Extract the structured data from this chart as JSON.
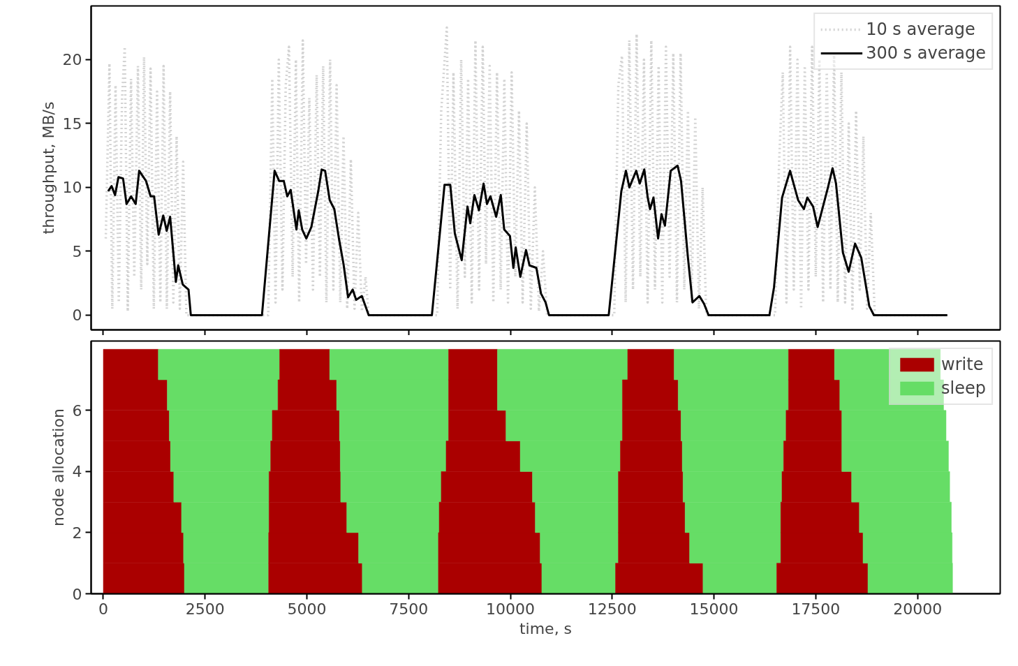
{
  "chart_data": [
    {
      "type": "line",
      "ylabel": "throughput, MB/s",
      "xlim": [
        -300,
        22030
      ],
      "ylim": [
        -1.15,
        24.2
      ],
      "xticks": [
        0,
        2500,
        5000,
        7500,
        10000,
        12500,
        15000,
        17500,
        20000
      ],
      "yticks": [
        0,
        5,
        10,
        15,
        20
      ],
      "tick_labels": "y",
      "grid": false,
      "legend": "top right",
      "series": [
        {
          "name": "10 s average",
          "color": "#d3d3d3",
          "line_style": "dotted",
          "x": [
            60,
            150,
            220,
            300,
            380,
            460,
            526,
            600,
            680,
            760,
            850,
            930,
            1000,
            1080,
            1160,
            1240,
            1320,
            1400,
            1480,
            1560,
            1640,
            1720,
            1800,
            1880,
            1960,
            2040,
            2100,
            4000,
            4050,
            4150,
            4230,
            4310,
            4400,
            4480,
            4560,
            4650,
            4730,
            4810,
            4900,
            4980,
            5060,
            5150,
            5240,
            5320,
            5400,
            5480,
            5570,
            5650,
            5730,
            5820,
            5900,
            5990,
            6080,
            6170,
            6260,
            6350,
            6440,
            6520,
            8100,
            8200,
            8300,
            8437,
            8520,
            8600,
            8700,
            8790,
            8880,
            8960,
            9050,
            9140,
            9230,
            9320,
            9400,
            9490,
            9580,
            9670,
            9760,
            9850,
            9940,
            10030,
            10120,
            10210,
            10300,
            10400,
            10500,
            10600,
            10700,
            10800,
            10900,
            12500,
            12550,
            12650,
            12740,
            12830,
            12920,
            13010,
            13100,
            13190,
            13280,
            13370,
            13460,
            13550,
            13640,
            13730,
            13820,
            13910,
            14000,
            14090,
            14180,
            14270,
            14360,
            14450,
            14540,
            14630,
            14720,
            14810,
            16500,
            16600,
            16690,
            16780,
            16870,
            16960,
            17050,
            17140,
            17230,
            17320,
            17410,
            17500,
            17590,
            17680,
            17770,
            17860,
            17950,
            18040,
            18130,
            18220,
            18310,
            18400,
            18490,
            18580,
            18670,
            18760,
            18850,
            18950,
            20760
          ],
          "values": [
            6,
            19.7,
            0.5,
            18,
            1,
            17,
            21,
            0.3,
            18.5,
            3,
            19.5,
            2,
            20.2,
            4,
            19.3,
            0.5,
            17.5,
            1,
            19.5,
            0.5,
            17.5,
            1,
            14,
            0.5,
            12,
            0,
            0,
            0,
            0,
            18.5,
            1,
            20,
            2,
            18,
            21,
            3,
            20,
            1,
            21.5,
            4,
            17,
            2,
            18.8,
            3,
            19.5,
            1,
            20,
            2,
            18,
            1,
            14,
            0.5,
            12.2,
            0.5,
            8,
            0.3,
            3,
            0,
            0,
            0,
            16,
            22.5,
            2,
            19,
            0.5,
            20,
            3,
            18.5,
            1,
            21.5,
            2,
            21,
            4,
            19.5,
            1,
            19,
            2,
            18.5,
            1,
            19,
            3,
            16,
            1,
            15,
            0.5,
            10,
            0.3,
            5,
            0,
            0,
            0,
            18,
            20.3,
            1,
            21.5,
            2,
            22,
            3,
            20,
            1,
            21.5,
            2,
            19.5,
            1,
            21,
            3,
            20.5,
            1,
            20.5,
            2,
            16,
            1,
            15.5,
            0.5,
            10,
            0,
            0,
            12,
            19,
            1,
            21,
            2,
            20,
            0.5,
            19.5,
            2,
            21,
            3,
            20,
            1,
            19,
            2,
            20.5,
            1,
            19,
            1,
            15,
            0.5,
            16,
            2,
            14,
            0.5,
            8,
            0,
            0
          ]
        },
        {
          "name": "300 s average",
          "color": "#000000",
          "line_style": "solid",
          "x": [
            118,
            203,
            288,
            372,
            485,
            570,
            682,
            795,
            880,
            1049,
            1162,
            1247,
            1359,
            1472,
            1557,
            1641,
            1782,
            1839,
            1951,
            2093,
            2149,
            3897,
            4207,
            4320,
            4433,
            4518,
            4602,
            4743,
            4800,
            4885,
            4986,
            5110,
            5279,
            5364,
            5448,
            5561,
            5674,
            5787,
            5900,
            6012,
            6125,
            6210,
            6350,
            6519,
            8071,
            8381,
            8522,
            8634,
            8803,
            8945,
            9013,
            9115,
            9227,
            9340,
            9424,
            9509,
            9650,
            9763,
            9847,
            9988,
            10072,
            10130,
            10242,
            10383,
            10468,
            10637,
            10750,
            10863,
            10947,
            12414,
            12724,
            12837,
            12921,
            13090,
            13175,
            13288,
            13372,
            13429,
            13514,
            13627,
            13711,
            13795,
            13937,
            14106,
            14191,
            14360,
            14472,
            14641,
            14754,
            14867,
            16362,
            16475,
            16672,
            16869,
            16954,
            17067,
            17208,
            17293,
            17434,
            17546,
            17800,
            17913,
            17997,
            18166,
            18308,
            18465,
            18617,
            18815,
            18928,
            20732
          ],
          "values": [
            9.7,
            10.1,
            9.4,
            10.8,
            10.7,
            8.7,
            9.3,
            8.7,
            11.3,
            10.5,
            9.3,
            9.3,
            6.3,
            7.8,
            6.6,
            7.7,
            2.6,
            3.9,
            2.4,
            2.0,
            0,
            0,
            11.3,
            10.5,
            10.5,
            9.3,
            9.8,
            6.7,
            8.2,
            6.7,
            6.0,
            6.9,
            9.7,
            11.4,
            11.3,
            9.0,
            8.3,
            6.0,
            4.0,
            1.4,
            2.0,
            1.2,
            1.5,
            0,
            0,
            10.2,
            10.2,
            6.4,
            4.3,
            8.5,
            7.2,
            9.4,
            8.2,
            10.3,
            8.7,
            9.3,
            7.7,
            9.4,
            6.7,
            6.2,
            3.7,
            5.3,
            3.0,
            5.1,
            3.9,
            3.7,
            1.7,
            1.0,
            0,
            0,
            9.7,
            11.3,
            10.0,
            11.3,
            10.3,
            11.4,
            9.2,
            8.3,
            9.2,
            6.0,
            7.9,
            7.0,
            11.3,
            11.7,
            10.5,
            4.5,
            1.0,
            1.5,
            0.9,
            0,
            0,
            2.2,
            9.2,
            11.3,
            10.3,
            9.0,
            8.3,
            9.2,
            8.5,
            6.9,
            10.0,
            11.5,
            10.3,
            4.9,
            3.4,
            5.6,
            4.5,
            0.7,
            0,
            0
          ]
        }
      ]
    },
    {
      "type": "bar",
      "orientation": "horizontal",
      "xlabel": "time, s",
      "ylabel": "node allocation",
      "xlim": [
        -300,
        22030
      ],
      "ylim": [
        0,
        8.27
      ],
      "xticks": [
        0,
        2500,
        5000,
        7500,
        10000,
        12500,
        15000,
        17500,
        20000
      ],
      "yticks": [
        0,
        2,
        4,
        6
      ],
      "grid": false,
      "legend": "top right",
      "x": [
        0.5,
        1.5,
        2.5,
        3.5,
        4.5,
        5.5,
        6.5,
        7.5
      ],
      "series": [
        {
          "name": "write",
          "color": "#aa0000",
          "base": [
            0,
            0,
            0,
            0,
            0,
            0,
            0,
            0
          ],
          "values": [
            1990,
            1970,
            1920,
            1730,
            1650,
            1620,
            1570,
            1350
          ]
        },
        {
          "name": "sleep",
          "color": "#66dd66",
          "base": [
            1990,
            1970,
            1920,
            1730,
            1650,
            1620,
            1570,
            1350
          ],
          "values": [
            2070,
            2090,
            2150,
            2340,
            2460,
            2530,
            2720,
            2980
          ]
        },
        {
          "color": "#aa0000",
          "base": [
            4060,
            4060,
            4070,
            4070,
            4110,
            4150,
            4290,
            4330
          ],
          "values": [
            2300,
            2210,
            1910,
            1760,
            1710,
            1650,
            1440,
            1230
          ]
        },
        {
          "color": "#66dd66",
          "base": [
            6360,
            6270,
            5980,
            5830,
            5820,
            5800,
            5730,
            5560
          ],
          "values": [
            1870,
            1960,
            2270,
            2470,
            2600,
            2680,
            2750,
            2920
          ]
        },
        {
          "color": "#aa0000",
          "base": [
            8230,
            8230,
            8250,
            8300,
            8420,
            8480,
            8480,
            8480
          ],
          "values": [
            2540,
            2500,
            2360,
            2240,
            1820,
            1410,
            1200,
            1200
          ]
        },
        {
          "color": "#66dd66",
          "base": [
            10770,
            10730,
            10610,
            10540,
            10240,
            9890,
            9680,
            9680
          ],
          "values": [
            1810,
            1920,
            2040,
            2110,
            2460,
            2860,
            3070,
            3200
          ]
        },
        {
          "color": "#aa0000",
          "base": [
            12580,
            12650,
            12650,
            12650,
            12700,
            12750,
            12750,
            12880
          ],
          "values": [
            2150,
            1750,
            1640,
            1590,
            1520,
            1440,
            1370,
            1140
          ]
        },
        {
          "color": "#66dd66",
          "base": [
            14730,
            14400,
            14290,
            14240,
            14220,
            14190,
            14120,
            14020
          ],
          "values": [
            1810,
            2240,
            2350,
            2430,
            2490,
            2580,
            2710,
            2810
          ]
        },
        {
          "color": "#aa0000",
          "base": [
            16540,
            16640,
            16640,
            16670,
            16710,
            16770,
            16830,
            16830
          ],
          "values": [
            2240,
            2020,
            1930,
            1710,
            1430,
            1370,
            1260,
            1130
          ]
        },
        {
          "color": "#66dd66",
          "base": [
            18780,
            18660,
            18570,
            18380,
            18140,
            18140,
            18090,
            17960
          ],
          "values": [
            2080,
            2190,
            2260,
            2410,
            2620,
            2560,
            2550,
            2600
          ]
        }
      ]
    }
  ]
}
